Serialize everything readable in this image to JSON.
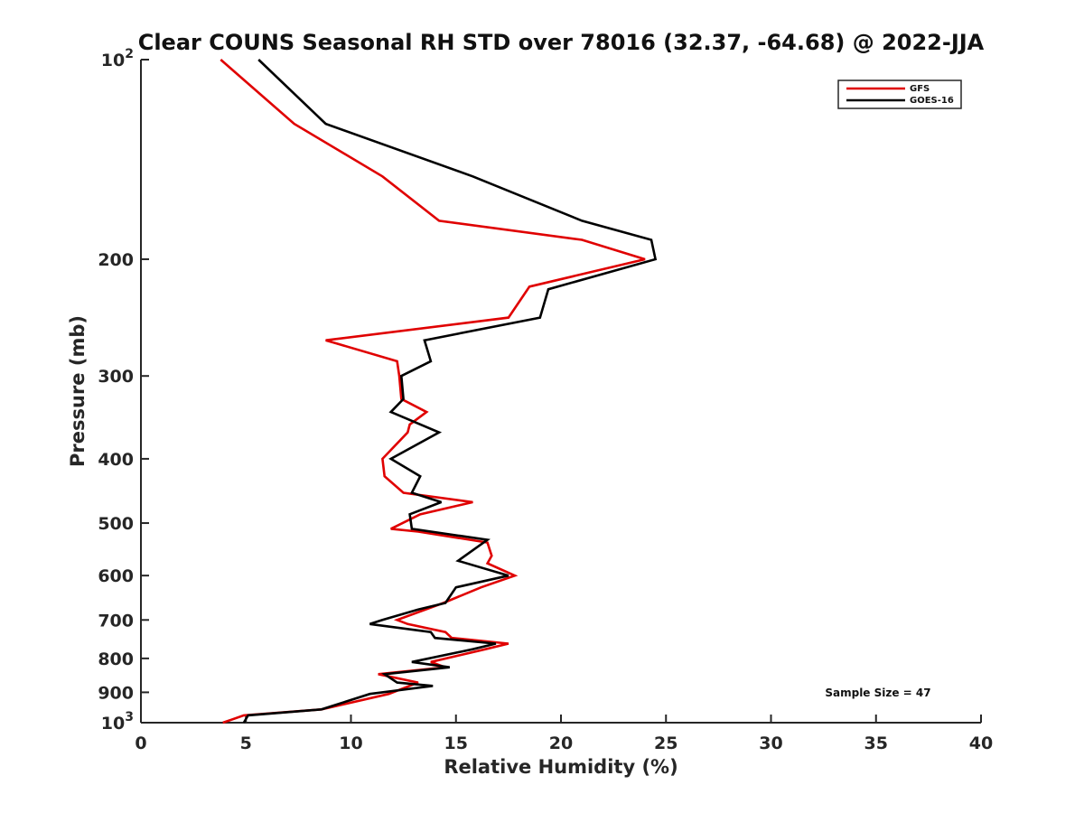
{
  "chart_data": {
    "type": "line",
    "title": "Clear COUNS Seasonal RH STD over 78016 (32.37, -64.68) @ 2022-JJA",
    "xlabel": "Relative Humidity (%)",
    "ylabel": "Pressure (mb)",
    "xlim": [
      0,
      40
    ],
    "ylim": [
      100,
      1000
    ],
    "yscale": "log",
    "y_reversed": true,
    "grid": false,
    "x_ticks": [
      0,
      5,
      10,
      15,
      20,
      25,
      30,
      35,
      40
    ],
    "x_tick_labels": [
      "0",
      "5",
      "10",
      "15",
      "20",
      "25",
      "30",
      "35",
      "40"
    ],
    "y_ticks": [
      100,
      200,
      300,
      400,
      500,
      600,
      700,
      800,
      900,
      1000
    ],
    "y_tick_labels": [
      {
        "base": "10",
        "exp": "2"
      },
      {
        "base": "200",
        "exp": ""
      },
      {
        "base": "300",
        "exp": ""
      },
      {
        "base": "400",
        "exp": ""
      },
      {
        "base": "500",
        "exp": ""
      },
      {
        "base": "600",
        "exp": ""
      },
      {
        "base": "700",
        "exp": ""
      },
      {
        "base": "800",
        "exp": ""
      },
      {
        "base": "900",
        "exp": ""
      },
      {
        "base": "10",
        "exp": "3"
      }
    ],
    "legend": {
      "position": "top-right",
      "entries": [
        "GFS",
        "GOES-16"
      ]
    },
    "annotation": "Sample Size = 47",
    "series": [
      {
        "name": "GFS",
        "color": "#e00000",
        "points": [
          [
            3.8,
            100
          ],
          [
            7.3,
            125
          ],
          [
            11.5,
            150
          ],
          [
            14.2,
            175
          ],
          [
            21.0,
            187
          ],
          [
            24.0,
            200
          ],
          [
            18.5,
            220
          ],
          [
            17.5,
            245
          ],
          [
            8.8,
            265
          ],
          [
            12.2,
            285
          ],
          [
            12.3,
            300
          ],
          [
            12.4,
            325
          ],
          [
            13.6,
            340
          ],
          [
            12.8,
            355
          ],
          [
            12.7,
            365
          ],
          [
            11.5,
            400
          ],
          [
            11.6,
            425
          ],
          [
            12.5,
            450
          ],
          [
            15.8,
            465
          ],
          [
            13.3,
            485
          ],
          [
            11.9,
            510
          ],
          [
            13.2,
            515
          ],
          [
            16.5,
            535
          ],
          [
            16.7,
            560
          ],
          [
            16.5,
            575
          ],
          [
            17.8,
            600
          ],
          [
            16.2,
            625
          ],
          [
            14.4,
            660
          ],
          [
            12.2,
            700
          ],
          [
            12.7,
            710
          ],
          [
            14.5,
            730
          ],
          [
            14.8,
            745
          ],
          [
            17.5,
            760
          ],
          [
            16.4,
            775
          ],
          [
            13.8,
            810
          ],
          [
            14.5,
            825
          ],
          [
            11.3,
            845
          ],
          [
            13.2,
            870
          ],
          [
            11.8,
            905
          ],
          [
            8.6,
            955
          ],
          [
            4.9,
            975
          ],
          [
            3.9,
            1000
          ]
        ]
      },
      {
        "name": "GOES-16",
        "color": "#000000",
        "points": [
          [
            5.6,
            100
          ],
          [
            8.8,
            125
          ],
          [
            15.8,
            150
          ],
          [
            21.0,
            175
          ],
          [
            24.3,
            187
          ],
          [
            24.5,
            200
          ],
          [
            19.4,
            222
          ],
          [
            19.0,
            245
          ],
          [
            13.5,
            265
          ],
          [
            13.8,
            285
          ],
          [
            12.4,
            300
          ],
          [
            12.5,
            325
          ],
          [
            11.9,
            340
          ],
          [
            14.2,
            365
          ],
          [
            11.9,
            400
          ],
          [
            13.3,
            425
          ],
          [
            12.9,
            450
          ],
          [
            14.3,
            465
          ],
          [
            12.8,
            485
          ],
          [
            12.9,
            510
          ],
          [
            16.5,
            530
          ],
          [
            15.1,
            570
          ],
          [
            17.5,
            600
          ],
          [
            15.0,
            625
          ],
          [
            14.5,
            660
          ],
          [
            13.2,
            675
          ],
          [
            11.5,
            700
          ],
          [
            10.9,
            710
          ],
          [
            13.8,
            730
          ],
          [
            14.0,
            745
          ],
          [
            16.9,
            760
          ],
          [
            15.8,
            775
          ],
          [
            12.9,
            810
          ],
          [
            14.7,
            825
          ],
          [
            11.6,
            845
          ],
          [
            12.2,
            870
          ],
          [
            13.9,
            880
          ],
          [
            10.9,
            905
          ],
          [
            8.6,
            955
          ],
          [
            5.1,
            975
          ],
          [
            4.9,
            1000
          ]
        ]
      }
    ]
  }
}
